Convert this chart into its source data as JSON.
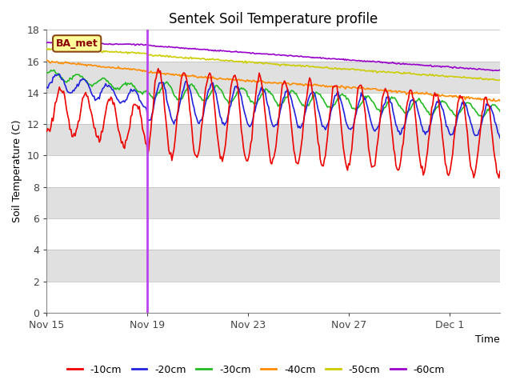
{
  "title": "Sentek Soil Temperature profile",
  "ylabel": "Soil Temperature (C)",
  "xlabel": "Time",
  "annotation_text": "BA_met",
  "annotation_color": "#8B0000",
  "annotation_bg": "#FFFF99",
  "annotation_border": "#8B4513",
  "ylim": [
    0,
    18
  ],
  "yticks": [
    0,
    2,
    4,
    6,
    8,
    10,
    12,
    14,
    16,
    18
  ],
  "xtick_labels": [
    "Nov 15",
    "Nov 19",
    "Nov 23",
    "Nov 27",
    "Dec 1"
  ],
  "xtick_positions": [
    0,
    4,
    8,
    12,
    16
  ],
  "vertical_line_x": 4.0,
  "vertical_line_color": "#BB44EE",
  "bg_band_color": "#E0E0E0",
  "series_colors": {
    "-10cm": "#EE0000",
    "-20cm": "#2222DD",
    "-30cm": "#22BB22",
    "-40cm": "#FF8C00",
    "-50cm": "#CCCC00",
    "-60cm": "#9900CC"
  },
  "total_days": 18,
  "num_points": 432,
  "vline_day": 4
}
